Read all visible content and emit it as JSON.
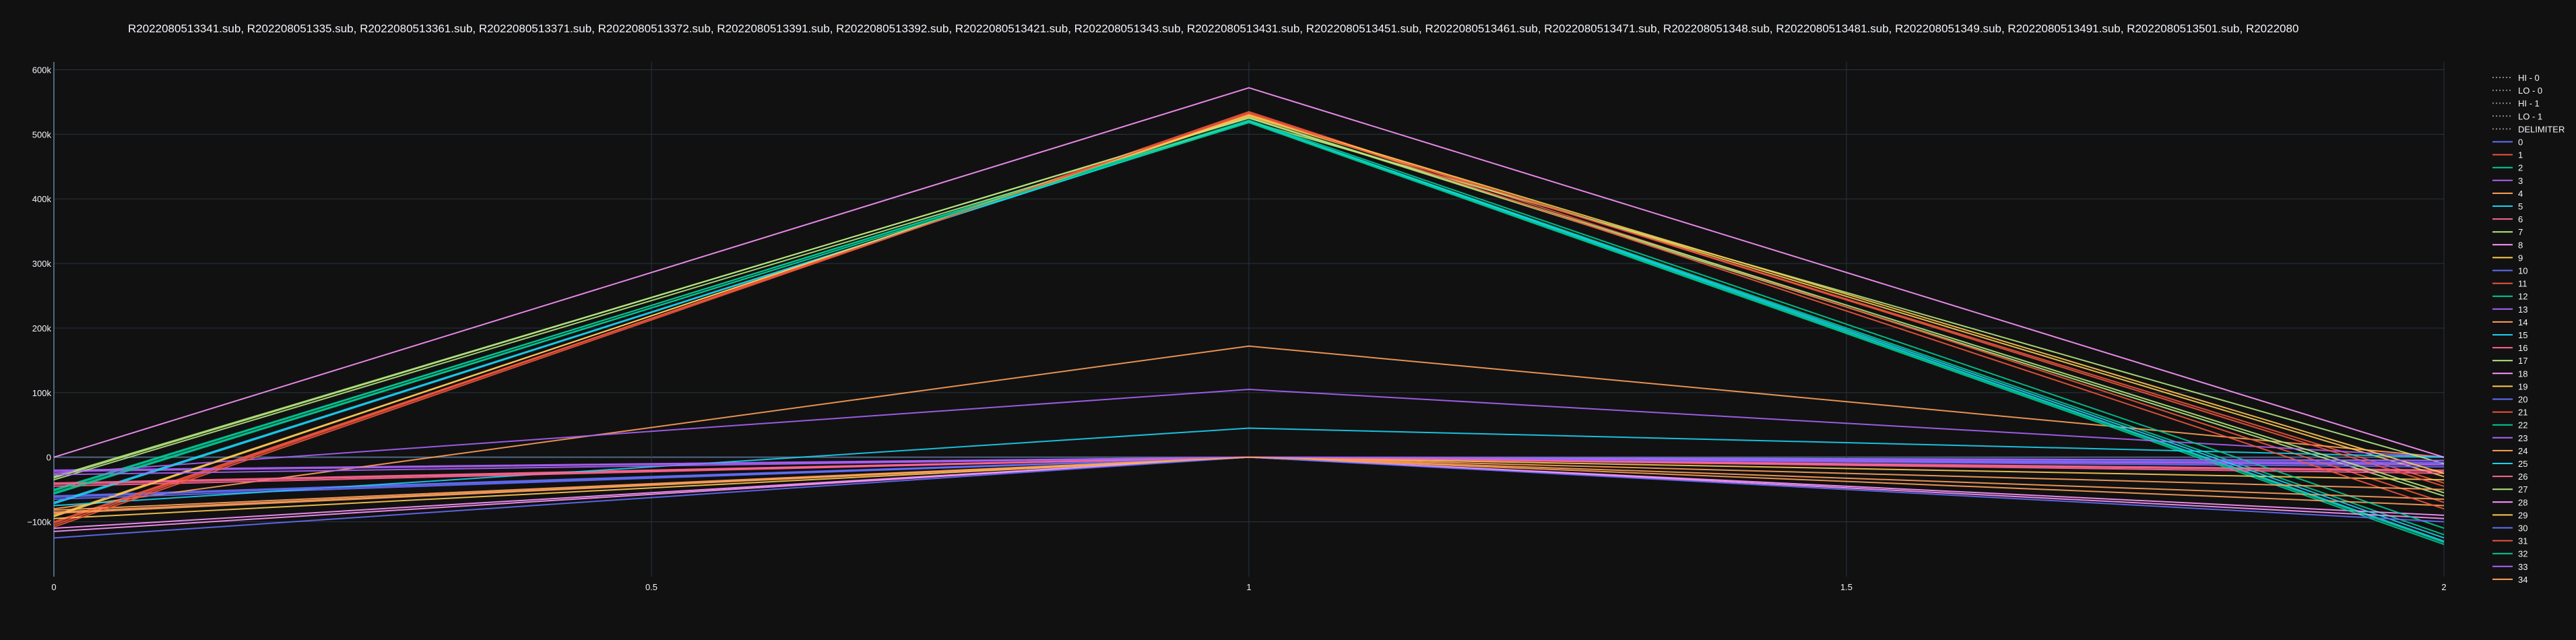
{
  "chart_data": {
    "type": "line",
    "title": "R2022080513341.sub, R202208051335.sub, R2022080513361.sub, R2022080513371.sub, R2022080513372.sub, R2022080513391.sub, R2022080513392.sub, R2022080513421.sub, R202208051343.sub, R2022080513431.sub, R2022080513451.sub, R2022080513461.sub, R2022080513471.sub, R202208051348.sub, R2022080513481.sub, R202208051349.sub, R2022080513491.sub, R2022080513501.sub, R2022080",
    "xlabel": "",
    "ylabel": "",
    "xlim": [
      0,
      2
    ],
    "ylim": [
      -185000,
      612000
    ],
    "x_ticks": [
      0,
      0.5,
      1,
      1.5,
      2
    ],
    "x_tick_labels": [
      "0",
      "0.5",
      "1",
      "1.5",
      "2"
    ],
    "y_ticks": [
      -100000,
      0,
      100000,
      200000,
      300000,
      400000,
      500000,
      600000
    ],
    "y_tick_labels": [
      "−100k",
      "0",
      "100k",
      "200k",
      "300k",
      "400k",
      "500k",
      "600k"
    ],
    "grid": true,
    "legend_position": "right",
    "background": "#111111",
    "grid_color": "#283442",
    "text_color": "#f2f5fa",
    "x": [
      0,
      1,
      2
    ],
    "reference_series": [
      {
        "name": "HI - 0",
        "color": "#8a8a8a",
        "dash": "dot",
        "values": [
          null,
          null,
          null
        ]
      },
      {
        "name": "LO - 0",
        "color": "#8a8a8a",
        "dash": "dot",
        "values": [
          null,
          null,
          null
        ]
      },
      {
        "name": "HI - 1",
        "color": "#8a8a8a",
        "dash": "dot",
        "values": [
          null,
          null,
          null
        ]
      },
      {
        "name": "LO - 1",
        "color": "#8a8a8a",
        "dash": "dot",
        "values": [
          null,
          null,
          null
        ]
      },
      {
        "name": "DELIMITER",
        "color": "#8a8a8a",
        "dash": "dot",
        "values": [
          null,
          null,
          null
        ]
      }
    ],
    "series": [
      {
        "name": "0",
        "color": "#636efa",
        "values": [
          -60000,
          0,
          -5000
        ]
      },
      {
        "name": "1",
        "color": "#ef553b",
        "values": [
          -100000,
          530000,
          -40000
        ]
      },
      {
        "name": "2",
        "color": "#00cc96",
        "values": [
          -50000,
          520000,
          -120000
        ]
      },
      {
        "name": "3",
        "color": "#ab63fa",
        "values": [
          -20000,
          0,
          -10000
        ]
      },
      {
        "name": "4",
        "color": "#ffa15a",
        "values": [
          -80000,
          172000,
          0
        ]
      },
      {
        "name": "5",
        "color": "#19d3f3",
        "values": [
          -70000,
          520000,
          -130000
        ]
      },
      {
        "name": "6",
        "color": "#ff6692",
        "values": [
          -40000,
          0,
          -20000
        ]
      },
      {
        "name": "7",
        "color": "#b6e880",
        "values": [
          -30000,
          525000,
          -60000
        ]
      },
      {
        "name": "8",
        "color": "#ff97ff",
        "values": [
          -110000,
          0,
          -90000
        ]
      },
      {
        "name": "9",
        "color": "#fecb52",
        "values": [
          -90000,
          528000,
          -30000
        ]
      },
      {
        "name": "10",
        "color": "#636efa",
        "values": [
          -65000,
          0,
          -15000
        ]
      },
      {
        "name": "11",
        "color": "#ef553b",
        "values": [
          -105000,
          535000,
          -70000
        ]
      },
      {
        "name": "12",
        "color": "#00cc96",
        "values": [
          -55000,
          518000,
          -135000
        ]
      },
      {
        "name": "13",
        "color": "#ab63fa",
        "values": [
          -25000,
          105000,
          0
        ]
      },
      {
        "name": "14",
        "color": "#ffa15a",
        "values": [
          -85000,
          0,
          -75000
        ]
      },
      {
        "name": "15",
        "color": "#19d3f3",
        "values": [
          -75000,
          45000,
          0
        ]
      },
      {
        "name": "16",
        "color": "#ff6692",
        "values": [
          -45000,
          0,
          -25000
        ]
      },
      {
        "name": "17",
        "color": "#b6e880",
        "values": [
          -35000,
          520000,
          -10000
        ]
      },
      {
        "name": "18",
        "color": "#ff97ff",
        "values": [
          -115000,
          0,
          -95000
        ]
      },
      {
        "name": "19",
        "color": "#fecb52",
        "values": [
          -95000,
          0,
          -35000
        ]
      },
      {
        "name": "20",
        "color": "#636efa",
        "values": [
          -62000,
          0,
          -8000
        ]
      },
      {
        "name": "21",
        "color": "#ef553b",
        "values": [
          -102000,
          532000,
          -45000
        ]
      },
      {
        "name": "22",
        "color": "#00cc96",
        "values": [
          -52000,
          522000,
          -110000
        ]
      },
      {
        "name": "23",
        "color": "#ab63fa",
        "values": [
          -22000,
          0,
          -12000
        ]
      },
      {
        "name": "24",
        "color": "#ffa15a",
        "values": [
          -82000,
          0,
          -65000
        ]
      },
      {
        "name": "25",
        "color": "#19d3f3",
        "values": [
          -72000,
          520000,
          -125000
        ]
      },
      {
        "name": "26",
        "color": "#ff6692",
        "values": [
          -42000,
          0,
          -22000
        ]
      },
      {
        "name": "27",
        "color": "#b6e880",
        "values": [
          -32000,
          526000,
          -55000
        ]
      },
      {
        "name": "28",
        "color": "#ff97ff",
        "values": [
          0,
          572000,
          0
        ]
      },
      {
        "name": "29",
        "color": "#fecb52",
        "values": [
          -92000,
          530000,
          -25000
        ]
      },
      {
        "name": "30",
        "color": "#636efa",
        "values": [
          -125000,
          0,
          -100000
        ]
      },
      {
        "name": "31",
        "color": "#ef553b",
        "values": [
          -108000,
          533000,
          -80000
        ]
      },
      {
        "name": "32",
        "color": "#00cc96",
        "values": [
          -57000,
          519000,
          -132000
        ]
      },
      {
        "name": "33",
        "color": "#ab63fa",
        "values": [
          -27000,
          0,
          -5000
        ]
      },
      {
        "name": "34",
        "color": "#ffa15a",
        "values": [
          -87000,
          0,
          -50000
        ]
      }
    ]
  }
}
